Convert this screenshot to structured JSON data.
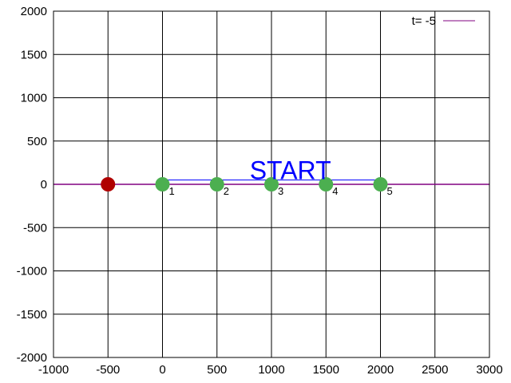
{
  "chart_data": {
    "type": "scatter",
    "title": "",
    "xlabel": "",
    "ylabel": "",
    "xlim": [
      -1000,
      3000
    ],
    "ylim": [
      -2000,
      2000
    ],
    "x_ticks": [
      -1000,
      -500,
      0,
      500,
      1000,
      1500,
      2000,
      2500,
      3000
    ],
    "y_ticks": [
      -2000,
      -1500,
      -1000,
      -500,
      0,
      500,
      1000,
      1500,
      2000
    ],
    "grid": true,
    "legend": {
      "position": "top-right",
      "entries": [
        {
          "label": "t=  -5",
          "color": "#800080"
        }
      ]
    },
    "baseline": {
      "y": 0,
      "color": "#800080"
    },
    "annotation": {
      "text": "START",
      "x": 800,
      "y": 150,
      "color": "#0000ff"
    },
    "start_box": {
      "x": [
        0,
        2000
      ],
      "y": [
        0,
        50
      ],
      "color": "#0000ff"
    },
    "series": [
      {
        "color": "#b00000",
        "points": [
          {
            "x": -500,
            "y": 0,
            "label": ""
          }
        ]
      },
      {
        "color": "#4caf50",
        "points": [
          {
            "x": 0,
            "y": 0,
            "label": "1"
          },
          {
            "x": 500,
            "y": 0,
            "label": "2"
          },
          {
            "x": 1000,
            "y": 0,
            "label": "3"
          },
          {
            "x": 1500,
            "y": 0,
            "label": "4"
          },
          {
            "x": 2000,
            "y": 0,
            "label": "5"
          }
        ]
      }
    ]
  }
}
